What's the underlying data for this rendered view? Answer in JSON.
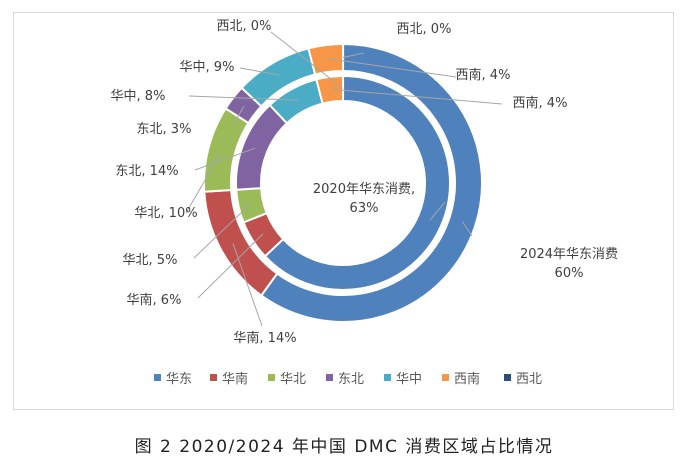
{
  "caption": "图 2  2020/2024 年中国 DMC 消费区域占比情况",
  "chart_data": {
    "type": "pie",
    "variant": "doughnut",
    "categories": [
      "华东",
      "华南",
      "华北",
      "东北",
      "华中",
      "西南",
      "西北"
    ],
    "colors": [
      "#4f81bd",
      "#c0504d",
      "#9bbb59",
      "#8064a2",
      "#4bacc6",
      "#f79646",
      "#2c4d75"
    ],
    "legend_position": "bottom",
    "series": [
      {
        "name": "2024年",
        "ring": "outer",
        "values": [
          60,
          14,
          10,
          3,
          9,
          4,
          0
        ]
      },
      {
        "name": "2020年",
        "ring": "inner",
        "values": [
          63,
          6,
          5,
          14,
          8,
          4,
          0
        ]
      }
    ],
    "data_labels": [
      {
        "ring": "outer",
        "index": 0,
        "text": "2024年华东消费\n60%"
      },
      {
        "ring": "outer",
        "index": 1,
        "text": "华南, 14%"
      },
      {
        "ring": "outer",
        "index": 2,
        "text": "华北, 10%"
      },
      {
        "ring": "outer",
        "index": 3,
        "text": "东北, 3%"
      },
      {
        "ring": "outer",
        "index": 4,
        "text": "华中, 9%"
      },
      {
        "ring": "outer",
        "index": 5,
        "text": "西南, 4%"
      },
      {
        "ring": "outer",
        "index": 6,
        "text": "西北, 0%"
      },
      {
        "ring": "inner",
        "index": 0,
        "text": "2020年华东消费,\n63%"
      },
      {
        "ring": "inner",
        "index": 1,
        "text": "华南, 6%"
      },
      {
        "ring": "inner",
        "index": 2,
        "text": "华北, 5%"
      },
      {
        "ring": "inner",
        "index": 3,
        "text": "东北, 14%"
      },
      {
        "ring": "inner",
        "index": 4,
        "text": "华中, 8%"
      },
      {
        "ring": "inner",
        "index": 5,
        "text": "西南, 4%"
      },
      {
        "ring": "inner",
        "index": 6,
        "text": "西北, 0%"
      }
    ]
  }
}
